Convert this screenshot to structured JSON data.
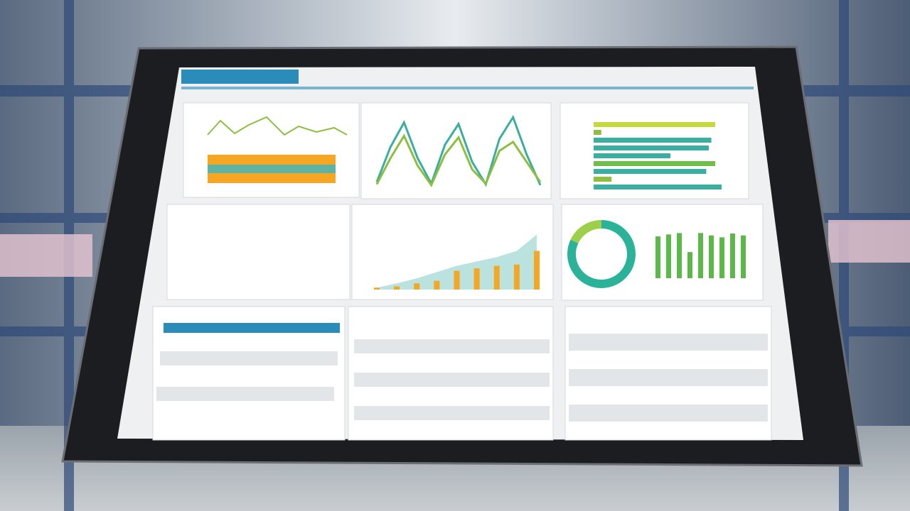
{
  "line_panel": {
    "type": "line",
    "ylim": [
      0,
      100
    ],
    "series": [
      {
        "color": "#3aaea0",
        "values": [
          8,
          55,
          88,
          40,
          6,
          58,
          86,
          35,
          5,
          66,
          95,
          45,
          4
        ]
      },
      {
        "color": "#8dbf3f",
        "values": [
          5,
          40,
          70,
          30,
          4,
          45,
          68,
          25,
          6,
          50,
          62,
          35,
          8
        ]
      }
    ]
  },
  "hbar_panel": {
    "type": "bar",
    "xlim": [
      0,
      100
    ],
    "values": [
      95,
      6,
      92,
      90,
      60,
      95,
      88,
      14,
      100
    ],
    "colors": [
      "#c5d93a",
      "#8dbf3f",
      "#3aaea0",
      "#3aaea0",
      "#3aaea0",
      "#6fbf4a",
      "#3aaea0",
      "#8dbf3f",
      "#3aaea0"
    ]
  },
  "area_bar_panel": {
    "type": "bar",
    "ylim": [
      0,
      100
    ],
    "area": {
      "color": "#a9dcd8",
      "values": [
        3,
        10,
        18,
        28,
        38,
        45,
        52,
        62,
        88
      ]
    },
    "bars": {
      "color": "#f5a623",
      "values": [
        3,
        5,
        10,
        14,
        30,
        34,
        38,
        40,
        62
      ]
    }
  },
  "donut_panel": {
    "type": "pie",
    "values": [
      82,
      18
    ],
    "colors": [
      "#2bb39a",
      "#9ccf4a"
    ],
    "bars": {
      "color": "#5db84a",
      "ylim": [
        0,
        100
      ],
      "values": [
        88,
        92,
        95,
        55,
        95,
        90,
        86,
        94,
        90
      ]
    }
  }
}
